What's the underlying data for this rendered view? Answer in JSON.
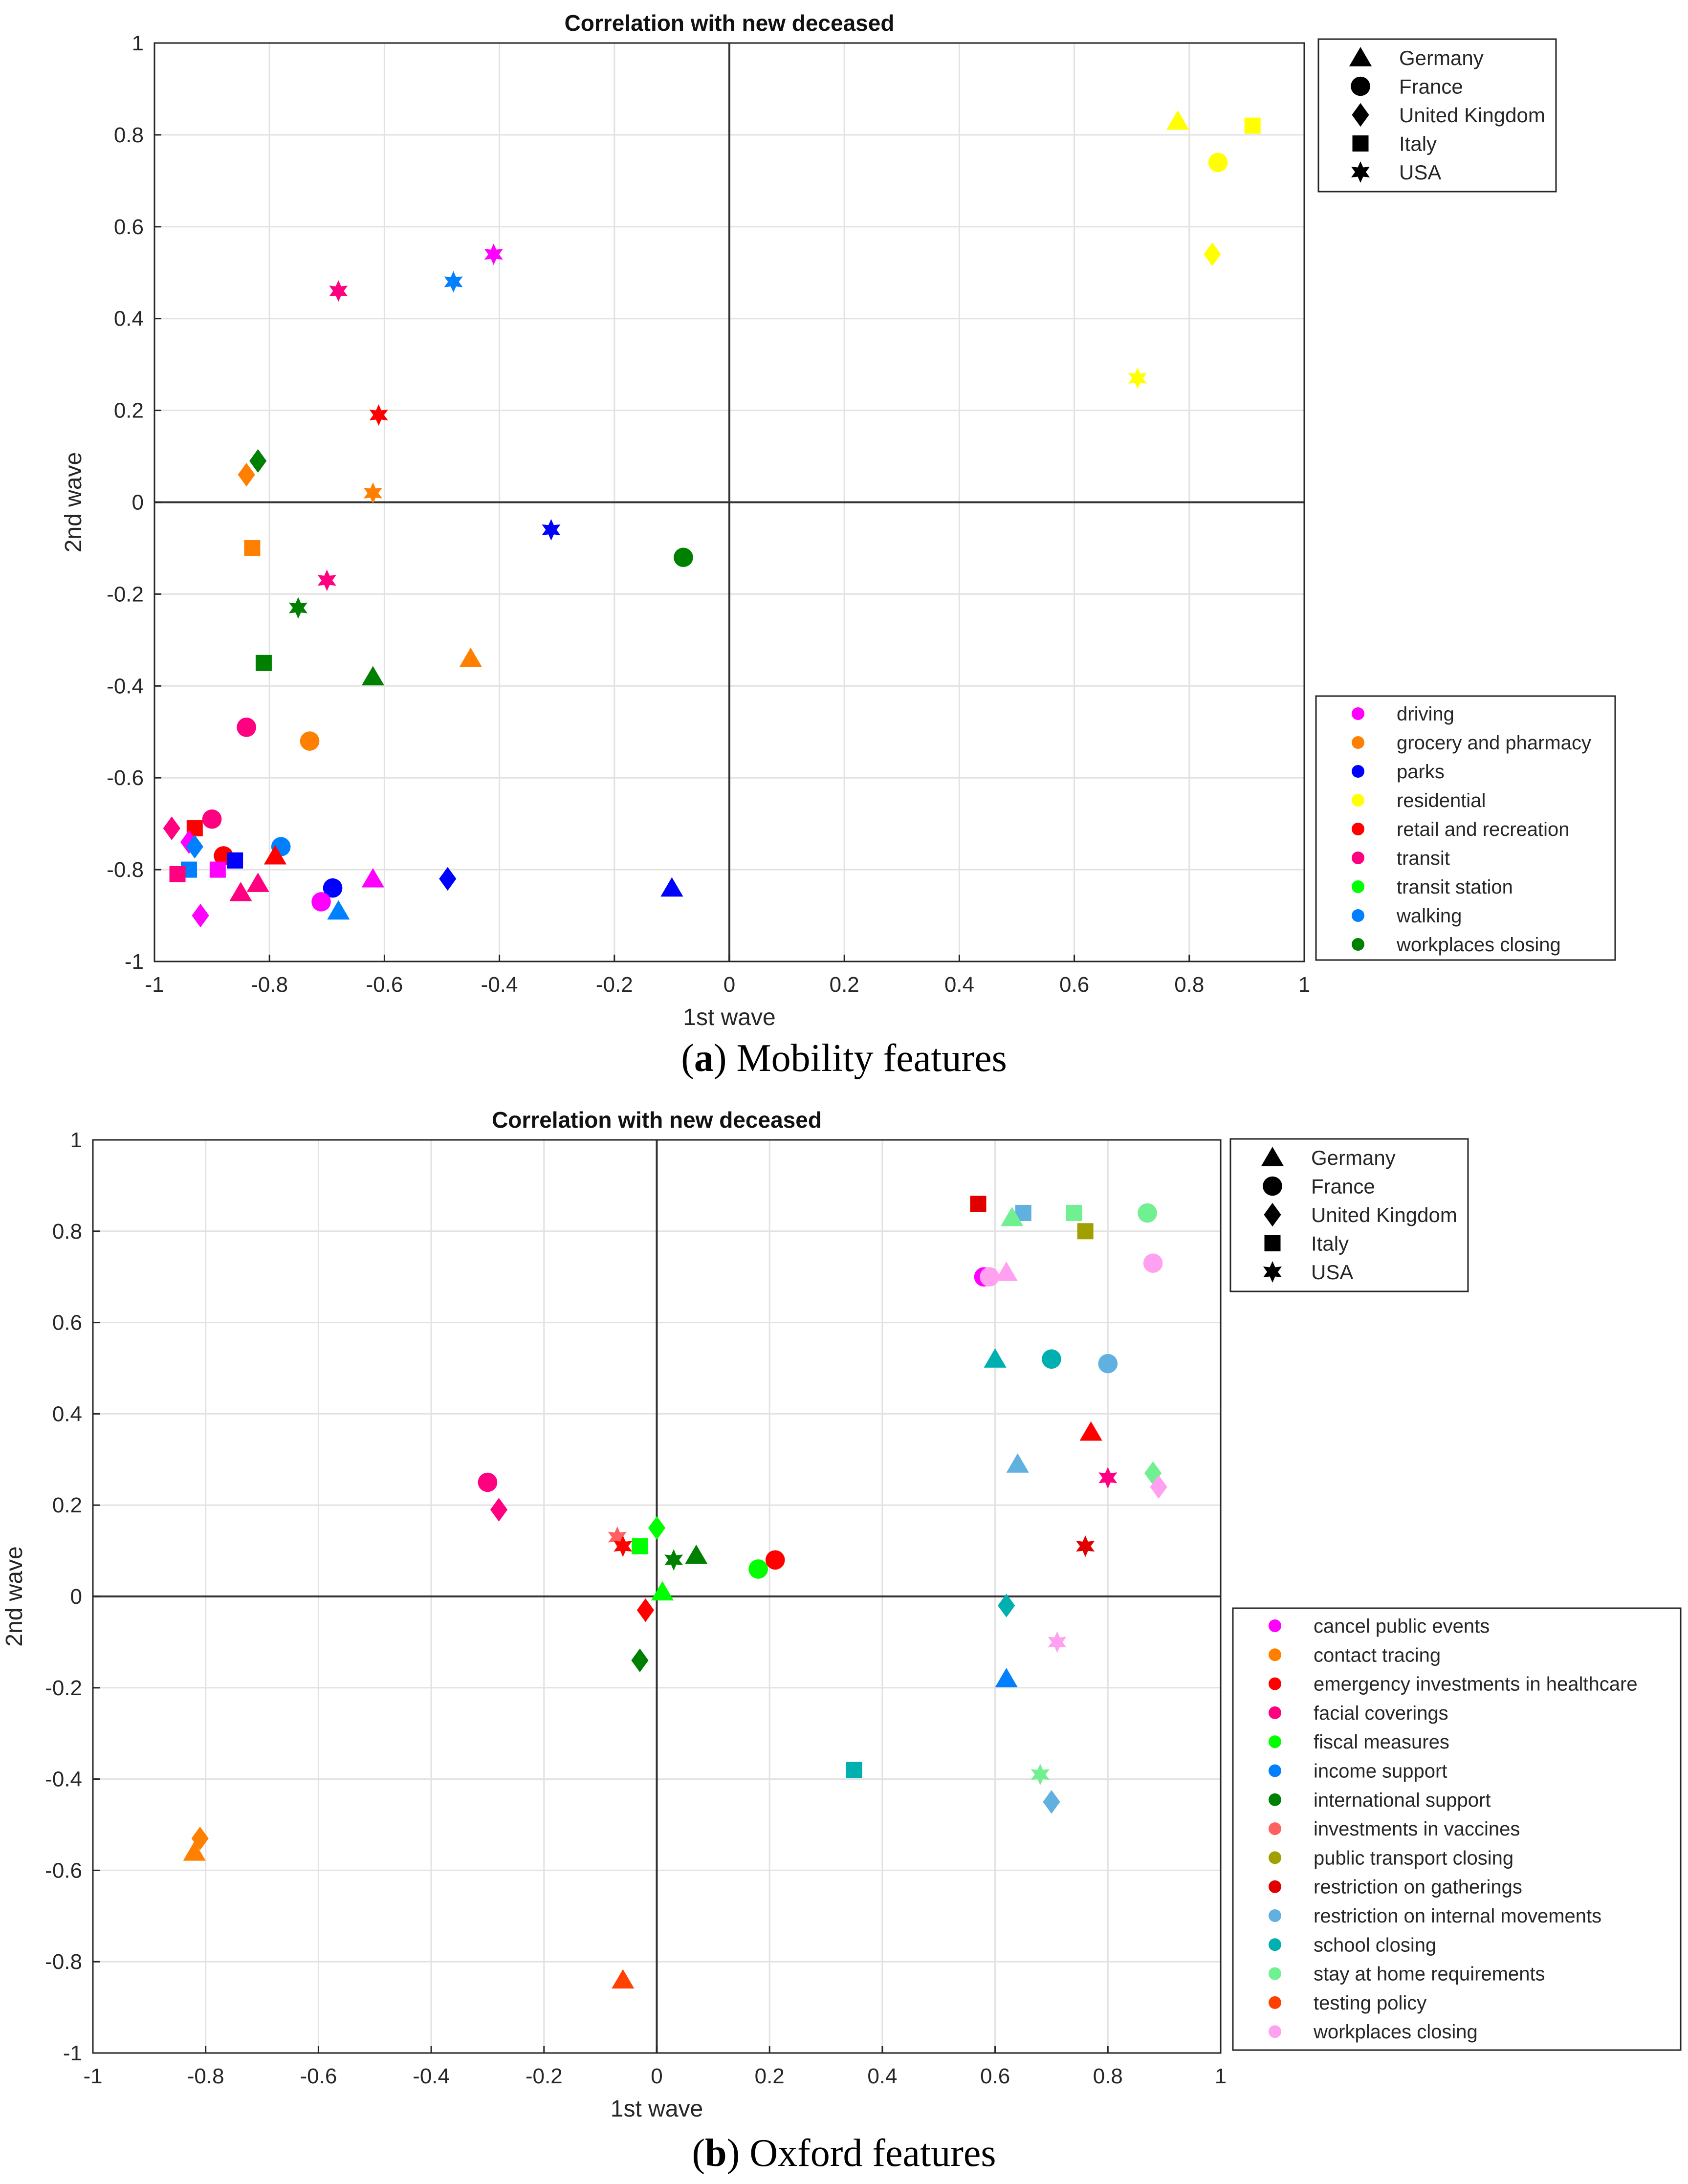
{
  "chart_data": [
    {
      "type": "scatter",
      "title": "Correlation with new deceased",
      "xlabel": "1st wave",
      "ylabel": "2nd wave",
      "xlim": [
        -1,
        1
      ],
      "ylim": [
        -1,
        1
      ],
      "grid": true,
      "caption_letter": "a",
      "caption_text": "Mobility features",
      "ticks": [
        "-1",
        "-0.8",
        "-0.6",
        "-0.4",
        "-0.2",
        "0",
        "0.2",
        "0.4",
        "0.6",
        "0.8",
        "1"
      ],
      "shape_legend": [
        {
          "label": "Germany",
          "marker": "triangle"
        },
        {
          "label": "France",
          "marker": "circle"
        },
        {
          "label": "United Kingdom",
          "marker": "diamond"
        },
        {
          "label": "Italy",
          "marker": "square"
        },
        {
          "label": "USA",
          "marker": "star"
        }
      ],
      "color_legend": [
        {
          "label": "driving",
          "color": "#ff00ff"
        },
        {
          "label": "grocery and pharmacy",
          "color": "#ff8000"
        },
        {
          "label": "parks",
          "color": "#0000ff"
        },
        {
          "label": "residential",
          "color": "#ffff00"
        },
        {
          "label": "retail and recreation",
          "color": "#ff0000"
        },
        {
          "label": "transit",
          "color": "#ff0080"
        },
        {
          "label": "transit station",
          "color": "#00ff00"
        },
        {
          "label": "walking",
          "color": "#0080ff"
        },
        {
          "label": "workplaces closing",
          "color": "#008000"
        }
      ],
      "points": [
        {
          "feature": "residential",
          "country": "Germany",
          "x": 0.78,
          "y": 0.83
        },
        {
          "feature": "residential",
          "country": "Italy",
          "x": 0.91,
          "y": 0.82
        },
        {
          "feature": "residential",
          "country": "France",
          "x": 0.85,
          "y": 0.74
        },
        {
          "feature": "residential",
          "country": "United Kingdom",
          "x": 0.84,
          "y": 0.54
        },
        {
          "feature": "residential",
          "country": "USA",
          "x": 0.71,
          "y": 0.27
        },
        {
          "feature": "driving",
          "country": "USA",
          "x": -0.41,
          "y": 0.54
        },
        {
          "feature": "walking",
          "country": "USA",
          "x": -0.48,
          "y": 0.48
        },
        {
          "feature": "transit",
          "country": "USA",
          "x": -0.68,
          "y": 0.46
        },
        {
          "feature": "retail and recreation",
          "country": "USA",
          "x": -0.61,
          "y": 0.19
        },
        {
          "feature": "workplaces closing",
          "country": "United Kingdom",
          "x": -0.82,
          "y": 0.09
        },
        {
          "feature": "grocery and pharmacy",
          "country": "United Kingdom",
          "x": -0.84,
          "y": 0.06
        },
        {
          "feature": "grocery and pharmacy",
          "country": "USA",
          "x": -0.62,
          "y": 0.02
        },
        {
          "feature": "parks",
          "country": "USA",
          "x": -0.31,
          "y": -0.06
        },
        {
          "feature": "grocery and pharmacy",
          "country": "Italy",
          "x": -0.83,
          "y": -0.1
        },
        {
          "feature": "workplaces closing",
          "country": "France",
          "x": -0.08,
          "y": -0.12
        },
        {
          "feature": "transit",
          "country": "USA",
          "x": -0.7,
          "y": -0.17
        },
        {
          "feature": "workplaces closing",
          "country": "USA",
          "x": -0.75,
          "y": -0.23
        },
        {
          "feature": "workplaces closing",
          "country": "Italy",
          "x": -0.81,
          "y": -0.35
        },
        {
          "feature": "grocery and pharmacy",
          "country": "Germany",
          "x": -0.45,
          "y": -0.34
        },
        {
          "feature": "workplaces closing",
          "country": "Germany",
          "x": -0.62,
          "y": -0.38
        },
        {
          "feature": "transit",
          "country": "France",
          "x": -0.84,
          "y": -0.49
        },
        {
          "feature": "grocery and pharmacy",
          "country": "France",
          "x": -0.73,
          "y": -0.52
        },
        {
          "feature": "transit",
          "country": "France",
          "x": -0.9,
          "y": -0.69
        },
        {
          "feature": "transit",
          "country": "United Kingdom",
          "x": -0.97,
          "y": -0.71
        },
        {
          "feature": "retail and recreation",
          "country": "Italy",
          "x": -0.93,
          "y": -0.71
        },
        {
          "feature": "driving",
          "country": "United Kingdom",
          "x": -0.94,
          "y": -0.74
        },
        {
          "feature": "walking",
          "country": "United Kingdom",
          "x": -0.93,
          "y": -0.75
        },
        {
          "feature": "walking",
          "country": "France",
          "x": -0.78,
          "y": -0.75
        },
        {
          "feature": "retail and recreation",
          "country": "France",
          "x": -0.88,
          "y": -0.77
        },
        {
          "feature": "retail and recreation",
          "country": "Germany",
          "x": -0.79,
          "y": -0.77
        },
        {
          "feature": "parks",
          "country": "Italy",
          "x": -0.86,
          "y": -0.78
        },
        {
          "feature": "walking",
          "country": "Italy",
          "x": -0.94,
          "y": -0.8
        },
        {
          "feature": "transit",
          "country": "Italy",
          "x": -0.96,
          "y": -0.81
        },
        {
          "feature": "driving",
          "country": "Italy",
          "x": -0.89,
          "y": -0.8
        },
        {
          "feature": "parks",
          "country": "United Kingdom",
          "x": -0.49,
          "y": -0.82
        },
        {
          "feature": "driving",
          "country": "Germany",
          "x": -0.62,
          "y": -0.82
        },
        {
          "feature": "transit",
          "country": "Germany",
          "x": -0.82,
          "y": -0.83
        },
        {
          "feature": "transit",
          "country": "Germany",
          "x": -0.85,
          "y": -0.85
        },
        {
          "feature": "parks",
          "country": "France",
          "x": -0.69,
          "y": -0.84
        },
        {
          "feature": "parks",
          "country": "Germany",
          "x": -0.1,
          "y": -0.84
        },
        {
          "feature": "driving",
          "country": "France",
          "x": -0.71,
          "y": -0.87
        },
        {
          "feature": "walking",
          "country": "Germany",
          "x": -0.68,
          "y": -0.89
        },
        {
          "feature": "driving",
          "country": "United Kingdom",
          "x": -0.92,
          "y": -0.9
        }
      ]
    },
    {
      "type": "scatter",
      "title": "Correlation with new deceased",
      "xlabel": "1st wave",
      "ylabel": "2nd wave",
      "xlim": [
        -1,
        1
      ],
      "ylim": [
        -1,
        1
      ],
      "grid": true,
      "caption_letter": "b",
      "caption_text": "Oxford features",
      "ticks": [
        "-1",
        "-0.8",
        "-0.6",
        "-0.4",
        "-0.2",
        "0",
        "0.2",
        "0.4",
        "0.6",
        "0.8",
        "1"
      ],
      "shape_legend": [
        {
          "label": "Germany",
          "marker": "triangle"
        },
        {
          "label": "France",
          "marker": "circle"
        },
        {
          "label": "United Kingdom",
          "marker": "diamond"
        },
        {
          "label": "Italy",
          "marker": "square"
        },
        {
          "label": "USA",
          "marker": "star"
        }
      ],
      "color_legend": [
        {
          "label": "cancel public events",
          "color": "#ff00ff"
        },
        {
          "label": "contact tracing",
          "color": "#ff8000"
        },
        {
          "label": "emergency investments in healthcare",
          "color": "#ff0000"
        },
        {
          "label": "facial coverings",
          "color": "#ff0080"
        },
        {
          "label": "fiscal measures",
          "color": "#00ff00"
        },
        {
          "label": "income support",
          "color": "#0080ff"
        },
        {
          "label": "international support",
          "color": "#008000"
        },
        {
          "label": "investments in vaccines",
          "color": "#ff6060"
        },
        {
          "label": "public transport closing",
          "color": "#a0a000"
        },
        {
          "label": "restriction on gatherings",
          "color": "#e00000"
        },
        {
          "label": "restriction on internal movements",
          "color": "#60b0e0"
        },
        {
          "label": "school closing",
          "color": "#00b0b0"
        },
        {
          "label": "stay at home requirements",
          "color": "#70f090"
        },
        {
          "label": "testing policy",
          "color": "#ff4000"
        },
        {
          "label": "workplaces closing",
          "color": "#ffa0f0"
        }
      ],
      "points": [
        {
          "feature": "restriction on gatherings",
          "country": "Italy",
          "x": 0.57,
          "y": 0.86
        },
        {
          "feature": "restriction on internal movements",
          "country": "Italy",
          "x": 0.65,
          "y": 0.84
        },
        {
          "feature": "stay at home requirements",
          "country": "Italy",
          "x": 0.74,
          "y": 0.84
        },
        {
          "feature": "stay at home requirements",
          "country": "France",
          "x": 0.87,
          "y": 0.84
        },
        {
          "feature": "stay at home requirements",
          "country": "Germany",
          "x": 0.63,
          "y": 0.83
        },
        {
          "feature": "public transport closing",
          "country": "Italy",
          "x": 0.76,
          "y": 0.8
        },
        {
          "feature": "workplaces closing",
          "country": "France",
          "x": 0.88,
          "y": 0.73
        },
        {
          "feature": "cancel public events",
          "country": "France",
          "x": 0.58,
          "y": 0.7
        },
        {
          "feature": "workplaces closing",
          "country": "France",
          "x": 0.59,
          "y": 0.7
        },
        {
          "feature": "workplaces closing",
          "country": "Germany",
          "x": 0.62,
          "y": 0.71
        },
        {
          "feature": "school closing",
          "country": "Germany",
          "x": 0.6,
          "y": 0.52
        },
        {
          "feature": "school closing",
          "country": "France",
          "x": 0.7,
          "y": 0.52
        },
        {
          "feature": "restriction on internal movements",
          "country": "France",
          "x": 0.8,
          "y": 0.51
        },
        {
          "feature": "emergency investments in healthcare",
          "country": "Germany",
          "x": 0.77,
          "y": 0.36
        },
        {
          "feature": "restriction on internal movements",
          "country": "Germany",
          "x": 0.64,
          "y": 0.29
        },
        {
          "feature": "stay at home requirements",
          "country": "United Kingdom",
          "x": 0.88,
          "y": 0.27
        },
        {
          "feature": "facial coverings",
          "country": "USA",
          "x": 0.8,
          "y": 0.26
        },
        {
          "feature": "workplaces closing",
          "country": "United Kingdom",
          "x": 0.89,
          "y": 0.24
        },
        {
          "feature": "restriction on gatherings",
          "country": "USA",
          "x": 0.76,
          "y": 0.11
        },
        {
          "feature": "school closing",
          "country": "United Kingdom",
          "x": 0.62,
          "y": -0.02
        },
        {
          "feature": "workplaces closing",
          "country": "USA",
          "x": 0.71,
          "y": -0.1
        },
        {
          "feature": "income support",
          "country": "Germany",
          "x": 0.62,
          "y": -0.18
        },
        {
          "feature": "stay at home requirements",
          "country": "USA",
          "x": 0.68,
          "y": -0.39
        },
        {
          "feature": "restriction on internal movements",
          "country": "United Kingdom",
          "x": 0.7,
          "y": -0.45
        },
        {
          "feature": "school closing",
          "country": "Italy",
          "x": 0.35,
          "y": -0.38
        },
        {
          "feature": "facial coverings",
          "country": "France",
          "x": -0.3,
          "y": 0.25
        },
        {
          "feature": "facial coverings",
          "country": "United Kingdom",
          "x": -0.28,
          "y": 0.19
        },
        {
          "feature": "fiscal measures",
          "country": "United Kingdom",
          "x": 0.0,
          "y": 0.15
        },
        {
          "feature": "investments in vaccines",
          "country": "USA",
          "x": -0.07,
          "y": 0.13
        },
        {
          "feature": "emergency investments in healthcare",
          "country": "USA",
          "x": -0.06,
          "y": 0.11
        },
        {
          "feature": "fiscal measures",
          "country": "Italy",
          "x": -0.03,
          "y": 0.11
        },
        {
          "feature": "international support",
          "country": "USA",
          "x": 0.03,
          "y": 0.08
        },
        {
          "feature": "international support",
          "country": "Germany",
          "x": 0.07,
          "y": 0.09
        },
        {
          "feature": "emergency investments in healthcare",
          "country": "France",
          "x": 0.21,
          "y": 0.08
        },
        {
          "feature": "fiscal measures",
          "country": "France",
          "x": 0.18,
          "y": 0.06
        },
        {
          "feature": "fiscal measures",
          "country": "Germany",
          "x": 0.01,
          "y": 0.01
        },
        {
          "feature": "emergency investments in healthcare",
          "country": "United Kingdom",
          "x": -0.02,
          "y": -0.03
        },
        {
          "feature": "international support",
          "country": "United Kingdom",
          "x": -0.03,
          "y": -0.14
        },
        {
          "feature": "contact tracing",
          "country": "United Kingdom",
          "x": -0.81,
          "y": -0.53
        },
        {
          "feature": "contact tracing",
          "country": "Germany",
          "x": -0.82,
          "y": -0.56
        },
        {
          "feature": "testing policy",
          "country": "Germany",
          "x": -0.06,
          "y": -0.84
        }
      ]
    }
  ]
}
